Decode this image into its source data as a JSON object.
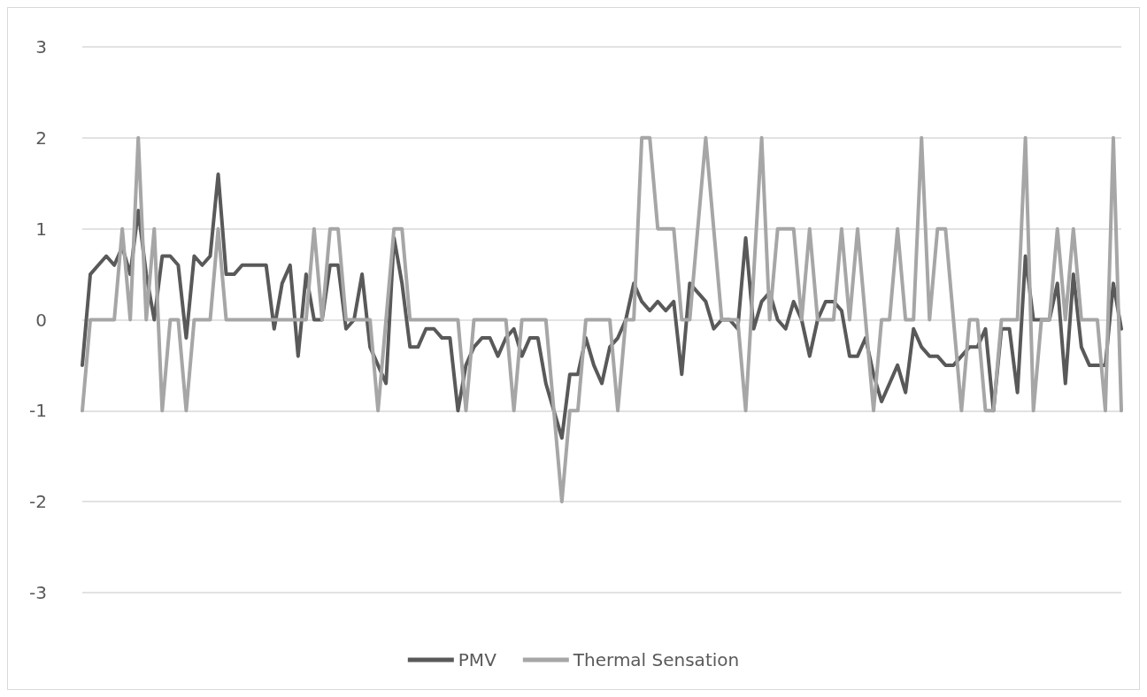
{
  "chart_data": {
    "type": "line",
    "categories": [
      null,
      null,
      null,
      null,
      null,
      null,
      null,
      null,
      null,
      null,
      null,
      null,
      null,
      null,
      null,
      null,
      null,
      null,
      null,
      null,
      null,
      null,
      null,
      null,
      null,
      null,
      null,
      null,
      null,
      null,
      null,
      null,
      null,
      null,
      null,
      null,
      null,
      null,
      null,
      null,
      null,
      null,
      null,
      null,
      null,
      null,
      null,
      null,
      null,
      null,
      null,
      null,
      null,
      null,
      null,
      null,
      null,
      null,
      null,
      null,
      null,
      null,
      null,
      null,
      null,
      null,
      null,
      null,
      null,
      null,
      null,
      null,
      null,
      null,
      null,
      null,
      null,
      null,
      null,
      null,
      null,
      null,
      null,
      null,
      null,
      null,
      null,
      null,
      null,
      null,
      null,
      null,
      null,
      null,
      null,
      null,
      null,
      null,
      null,
      null,
      null,
      null,
      null,
      null,
      null,
      null,
      null,
      null,
      null,
      null,
      null,
      null,
      null,
      null,
      null,
      null,
      null,
      null,
      null,
      null,
      null,
      null,
      null,
      null,
      null,
      null,
      null,
      null,
      null,
      null,
      null
    ],
    "series": [
      {
        "name": "PMV",
        "color": "#595959",
        "values": [
          -0.5,
          0.5,
          0.6,
          0.7,
          0.6,
          0.8,
          0.5,
          1.2,
          0.5,
          0,
          0.7,
          0.7,
          0.6,
          -0.2,
          0.7,
          0.6,
          0.7,
          1.6,
          0.5,
          0.5,
          0.6,
          0.6,
          0.6,
          0.6,
          -0.1,
          0.4,
          0.6,
          -0.4,
          0.5,
          0,
          0,
          0.6,
          0.6,
          -0.1,
          0,
          0.5,
          -0.3,
          -0.5,
          -0.7,
          0.9,
          0.4,
          -0.3,
          -0.3,
          -0.1,
          -0.1,
          -0.2,
          -0.2,
          -1,
          -0.5,
          -0.3,
          -0.2,
          -0.2,
          -0.4,
          -0.2,
          -0.1,
          -0.4,
          -0.2,
          -0.2,
          -0.7,
          -1,
          -1.3,
          -0.6,
          -0.6,
          -0.2,
          -0.5,
          -0.7,
          -0.3,
          -0.2,
          0,
          0.4,
          0.2,
          0.1,
          0.2,
          0.1,
          0.2,
          -0.6,
          0.4,
          0.3,
          0.2,
          -0.1,
          0,
          0,
          -0.1,
          0.9,
          -0.1,
          0.2,
          0.3,
          0,
          -0.1,
          0.2,
          0,
          -0.4,
          0,
          0.2,
          0.2,
          0.1,
          -0.4,
          -0.4,
          -0.2,
          -0.6,
          -0.9,
          -0.7,
          -0.5,
          -0.8,
          -0.1,
          -0.3,
          -0.4,
          -0.4,
          -0.5,
          -0.5,
          -0.4,
          -0.3,
          -0.3,
          -0.1,
          -1,
          -0.1,
          -0.1,
          -0.8,
          0.7,
          0,
          0,
          0,
          0.4,
          -0.7,
          0.5,
          -0.3,
          -0.5,
          -0.5,
          -0.5,
          0.4,
          -0.1
        ]
      },
      {
        "name": "Thermal Sensation",
        "color": "#a6a6a6",
        "values": [
          -1,
          0,
          0,
          0,
          0,
          1,
          0,
          2,
          0,
          1,
          -1,
          0,
          0,
          -1,
          0,
          0,
          0,
          1,
          0,
          0,
          0,
          0,
          0,
          0,
          0,
          0,
          0,
          0,
          0,
          1,
          0,
          1,
          1,
          0,
          0,
          0,
          0,
          -1,
          0,
          1,
          1,
          0,
          0,
          0,
          0,
          0,
          0,
          0,
          -1,
          0,
          0,
          0,
          0,
          0,
          -1,
          0,
          0,
          0,
          0,
          -1,
          -2,
          -1,
          -1,
          0,
          0,
          0,
          0,
          -1,
          0,
          0,
          2,
          2,
          1,
          1,
          1,
          0,
          0,
          1,
          2,
          1,
          0,
          0,
          0,
          -1,
          0.5,
          2,
          0,
          1,
          1,
          1,
          0,
          1,
          0,
          0,
          0,
          1,
          0,
          1,
          0,
          -1,
          0,
          0,
          1,
          0,
          0,
          2,
          0,
          1,
          1,
          0,
          -1,
          0,
          0,
          -1,
          -1,
          0,
          0,
          0,
          2,
          -1,
          0,
          0,
          1,
          0,
          1,
          0,
          0,
          0,
          -1,
          2,
          -1
        ]
      }
    ],
    "ylim": [
      -3,
      3
    ],
    "yticks": [
      -3,
      -2,
      -1,
      0,
      1,
      2,
      3
    ],
    "grid": "y",
    "legend": "bottom",
    "marker": "none",
    "line_style": "solid"
  }
}
